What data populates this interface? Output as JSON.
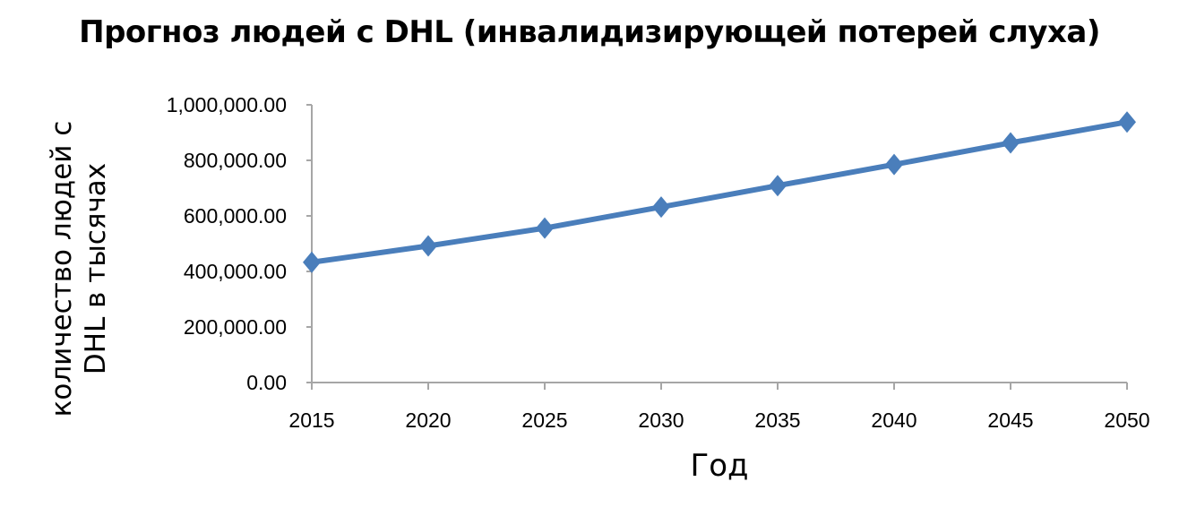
{
  "chart_data": {
    "type": "line",
    "title": "Прогноз людей с DHL (инвалидизирующей потерей слуха)",
    "xlabel": "Год",
    "ylabel_lines": [
      "количество людей с",
      "DHL в тысячах"
    ],
    "x": [
      2015,
      2020,
      2025,
      2030,
      2035,
      2040,
      2045,
      2050
    ],
    "x_tick_labels": [
      "2015",
      "2020",
      "2025",
      "2030",
      "2035",
      "2040",
      "2045",
      "2050"
    ],
    "y_tick_labels": [
      "0.00",
      "200,000.00",
      "400,000.00",
      "600,000.00",
      "800,000.00",
      "1,000,000.00"
    ],
    "ylim": [
      0,
      1000000
    ],
    "grid": false,
    "legend": "none",
    "series": [
      {
        "values": [
          433000,
          492000,
          556000,
          632000,
          709000,
          785000,
          863000,
          938000
        ],
        "color": "#4a7ebb",
        "marker": "diamond"
      }
    ],
    "axis_color": "#a6a6a6"
  }
}
